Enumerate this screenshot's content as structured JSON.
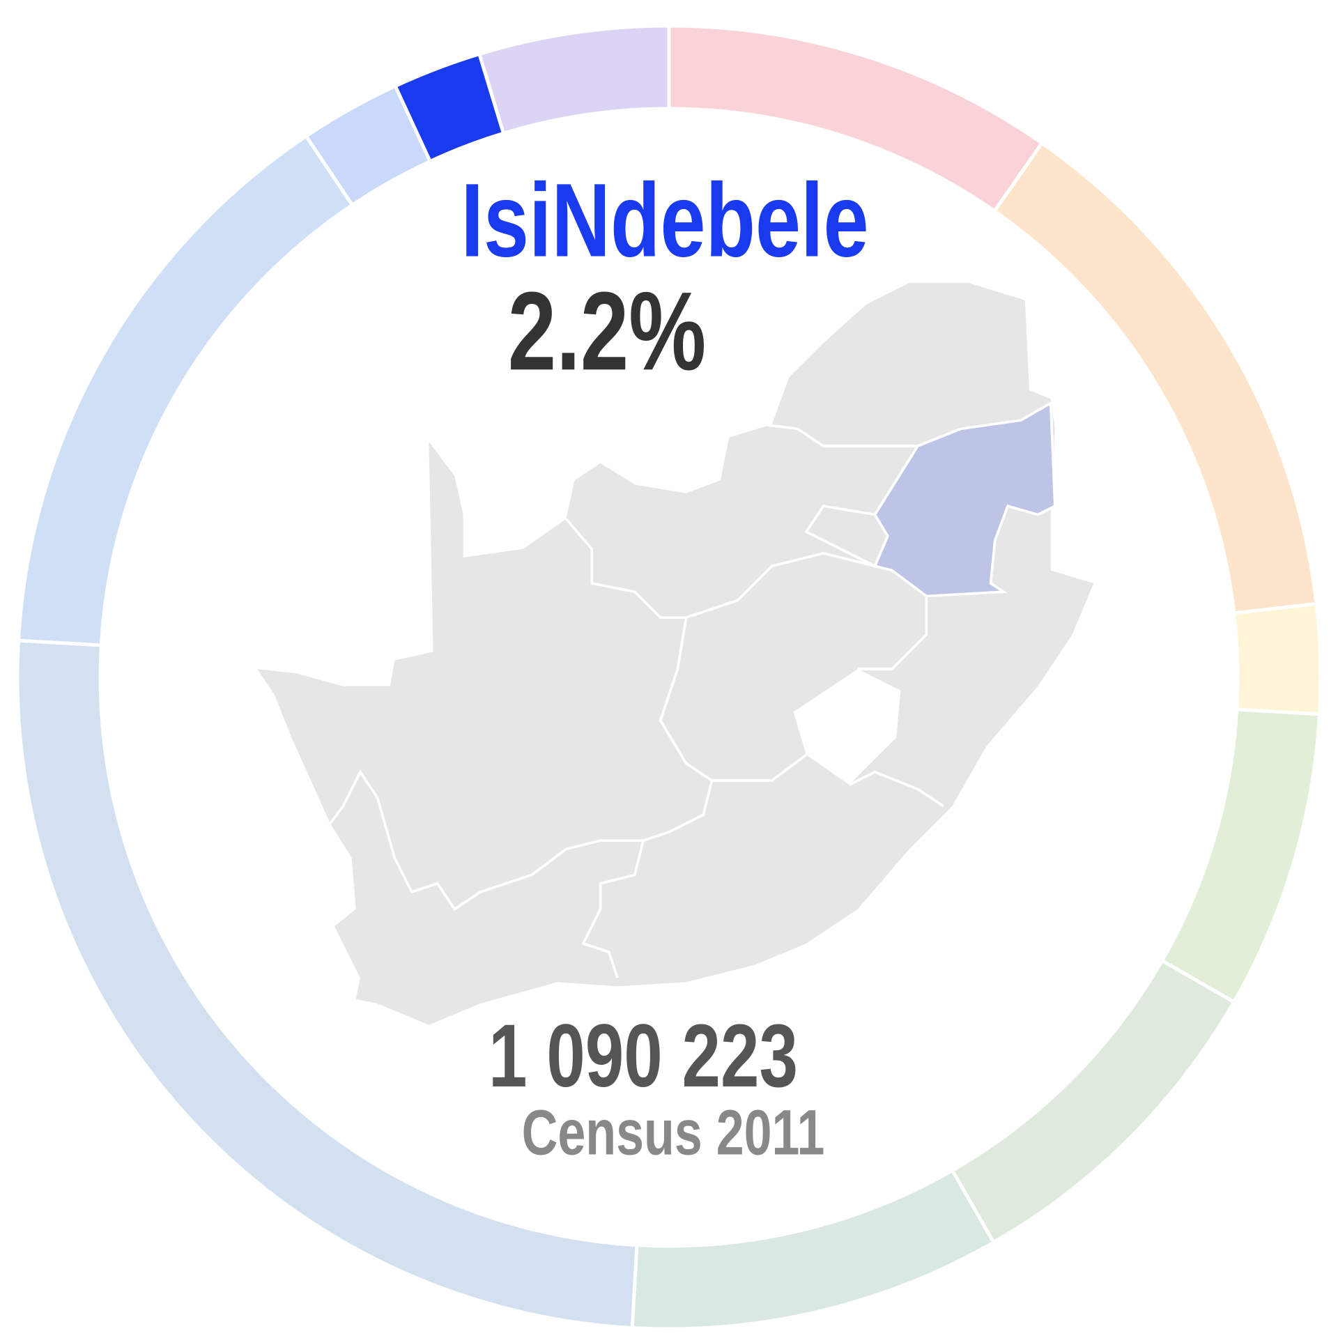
{
  "chart_data": {
    "type": "donut",
    "categories": [
      null,
      null,
      null,
      null,
      null,
      null,
      null,
      null,
      null,
      "IsiNdebele",
      null
    ],
    "values": [
      9.7,
      13.5,
      2.7,
      7.4,
      8.4,
      9.2,
      25,
      14.7,
      2.5,
      2.2,
      4.7
    ],
    "value_labels": [
      null,
      null,
      null,
      null,
      null,
      null,
      null,
      null,
      null,
      "2.2%",
      null
    ],
    "colors": [
      "#f9d3d8",
      "#fde5cc",
      "#fdf5d5",
      "#e1eed8",
      "#deebdc",
      "#d9e8e1",
      "#d3e0ef",
      "#cfdff5",
      "#c9d9fb",
      "#1a3aef",
      "#dcd4f5"
    ],
    "highlight": 9,
    "population": {
      "value": 1090223,
      "label": "1 090 223"
    },
    "subtitle": "Census 2011"
  }
}
